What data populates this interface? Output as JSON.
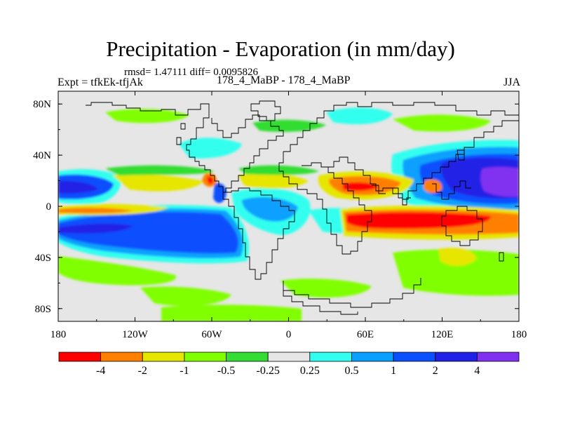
{
  "title": "Precipitation - Evaporation (in mm/day)",
  "stats": "rmsd= 1.47111 diff= 0.0095826",
  "experiment": "Expt = tfkEk-tfjAk",
  "case_label": "178_4_MaBP - 178_4_MaBP",
  "season": "JJA",
  "colors": {
    "bins": [
      "#ff0000",
      "#ff8000",
      "#e6e600",
      "#80ff00",
      "#33dd33",
      "#e6e6e6",
      "#33ffee",
      "#0aa0ff",
      "#0a50ff",
      "#2020e6",
      "#8030f0"
    ],
    "background": "#e6e6e6"
  },
  "chart_data": {
    "type": "heatmap",
    "projection": "cylindrical-equidistant",
    "x_range": [
      -180,
      180
    ],
    "y_range": [
      -90,
      90
    ],
    "x_ticks": [
      {
        "value": -180,
        "label": "180"
      },
      {
        "value": -120,
        "label": "120W"
      },
      {
        "value": -60,
        "label": "60W"
      },
      {
        "value": 0,
        "label": "0"
      },
      {
        "value": 60,
        "label": "60E"
      },
      {
        "value": 120,
        "label": "120E"
      },
      {
        "value": 180,
        "label": "180"
      }
    ],
    "y_ticks": [
      {
        "value": 80,
        "label": "80N"
      },
      {
        "value": 40,
        "label": "40N"
      },
      {
        "value": 0,
        "label": "0"
      },
      {
        "value": -40,
        "label": "40S"
      },
      {
        "value": -80,
        "label": "80S"
      }
    ],
    "contour_levels": [
      -4,
      -2,
      -1,
      -0.5,
      -0.25,
      0.25,
      0.5,
      1,
      2,
      4
    ],
    "colorbar_labels": [
      "-4",
      "-2",
      "-1",
      "-0.5",
      "-0.25",
      "0.25",
      "0.5",
      "1",
      "2",
      "4"
    ]
  }
}
